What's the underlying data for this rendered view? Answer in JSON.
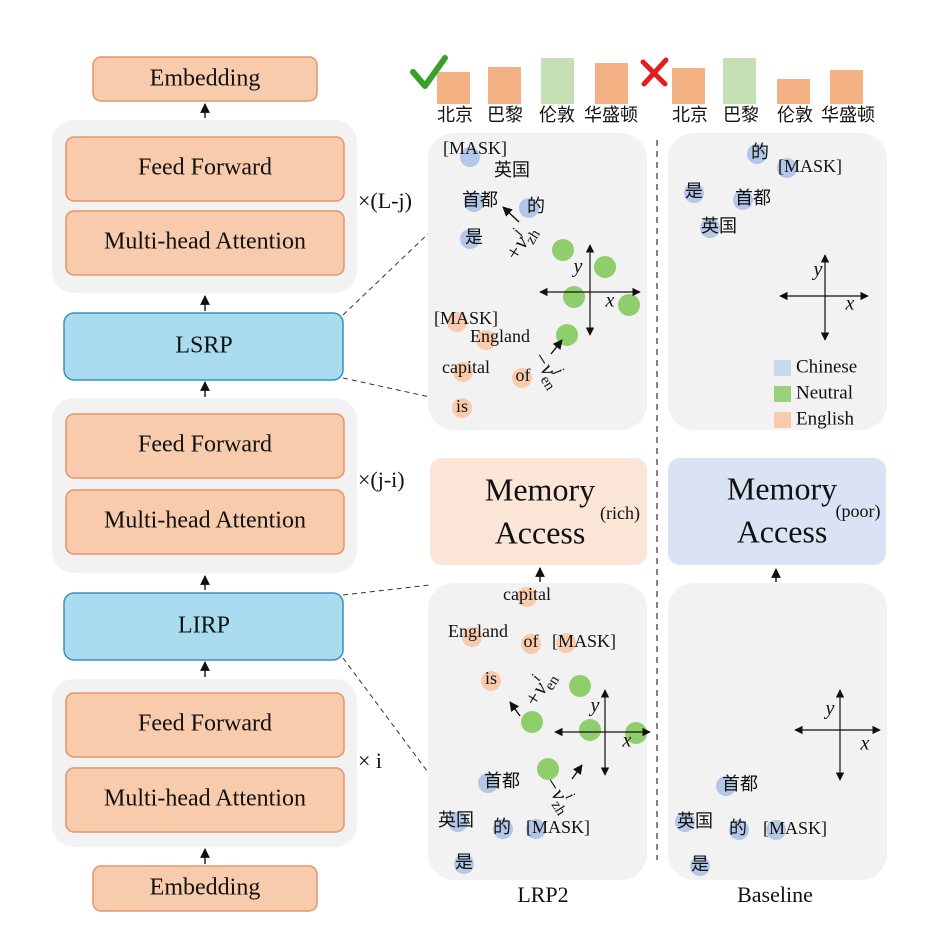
{
  "left": {
    "top_embedding": "Embedding",
    "blocks": [
      {
        "ffn": "Feed Forward",
        "mha": "Multi-head Attention",
        "repeat": "×(L-j)"
      },
      {
        "ffn": "Feed Forward",
        "mha": "Multi-head Attention",
        "repeat": "×(j-i)"
      },
      {
        "ffn": "Feed Forward",
        "mha": "Multi-head Attention",
        "repeat": "× i"
      }
    ],
    "lsrp": "LSRP",
    "lirp": "LIRP",
    "bottom_embedding": "Embedding"
  },
  "candidates": {
    "lrp2": [
      "北京",
      "巴黎",
      "伦敦",
      "华盛顿"
    ],
    "baseline": [
      "北京",
      "巴黎",
      "伦敦",
      "华盛顿"
    ]
  },
  "panels": {
    "lrp2_upper": {
      "points": [
        "[MASK]",
        "英国",
        "首都",
        "的",
        "是",
        "[MASK]",
        "England",
        "capital",
        "of",
        "is"
      ],
      "axis_x": "x",
      "axis_y": "y",
      "vectors": [
        {
          "text": "+v",
          "sub": "zh",
          "sup": "j"
        },
        {
          "text": "−v",
          "sub": "en",
          "sup": "j"
        }
      ]
    },
    "baseline_upper": {
      "points": [
        "的",
        "[MASK]",
        "是",
        "首都",
        "英国"
      ],
      "axis_x": "x",
      "axis_y": "y"
    },
    "lrp2_lower": {
      "points": [
        "capital",
        "England",
        "of",
        "[MASK]",
        "is",
        "首都",
        "英国",
        "的",
        "[MASK]",
        "是"
      ],
      "axis_x": "x",
      "axis_y": "y",
      "vectors": [
        {
          "text": "+v",
          "sub": "en",
          "sup": "i"
        },
        {
          "text": "−v",
          "sub": "zh",
          "sup": "i"
        }
      ]
    },
    "baseline_lower": {
      "points": [
        "首都",
        "英国",
        "的",
        "[MASK]",
        "是"
      ],
      "axis_x": "x",
      "axis_y": "y"
    }
  },
  "legend": [
    "Chinese",
    "Neutral",
    "English"
  ],
  "memory": {
    "lrp2": {
      "line1": "Memory",
      "line2": "Access",
      "note": "(rich)"
    },
    "baseline": {
      "line1": "Memory",
      "line2": "Access",
      "note": "(poor)"
    }
  },
  "captions": {
    "lrp2": "LRP2",
    "baseline": "Baseline"
  }
}
